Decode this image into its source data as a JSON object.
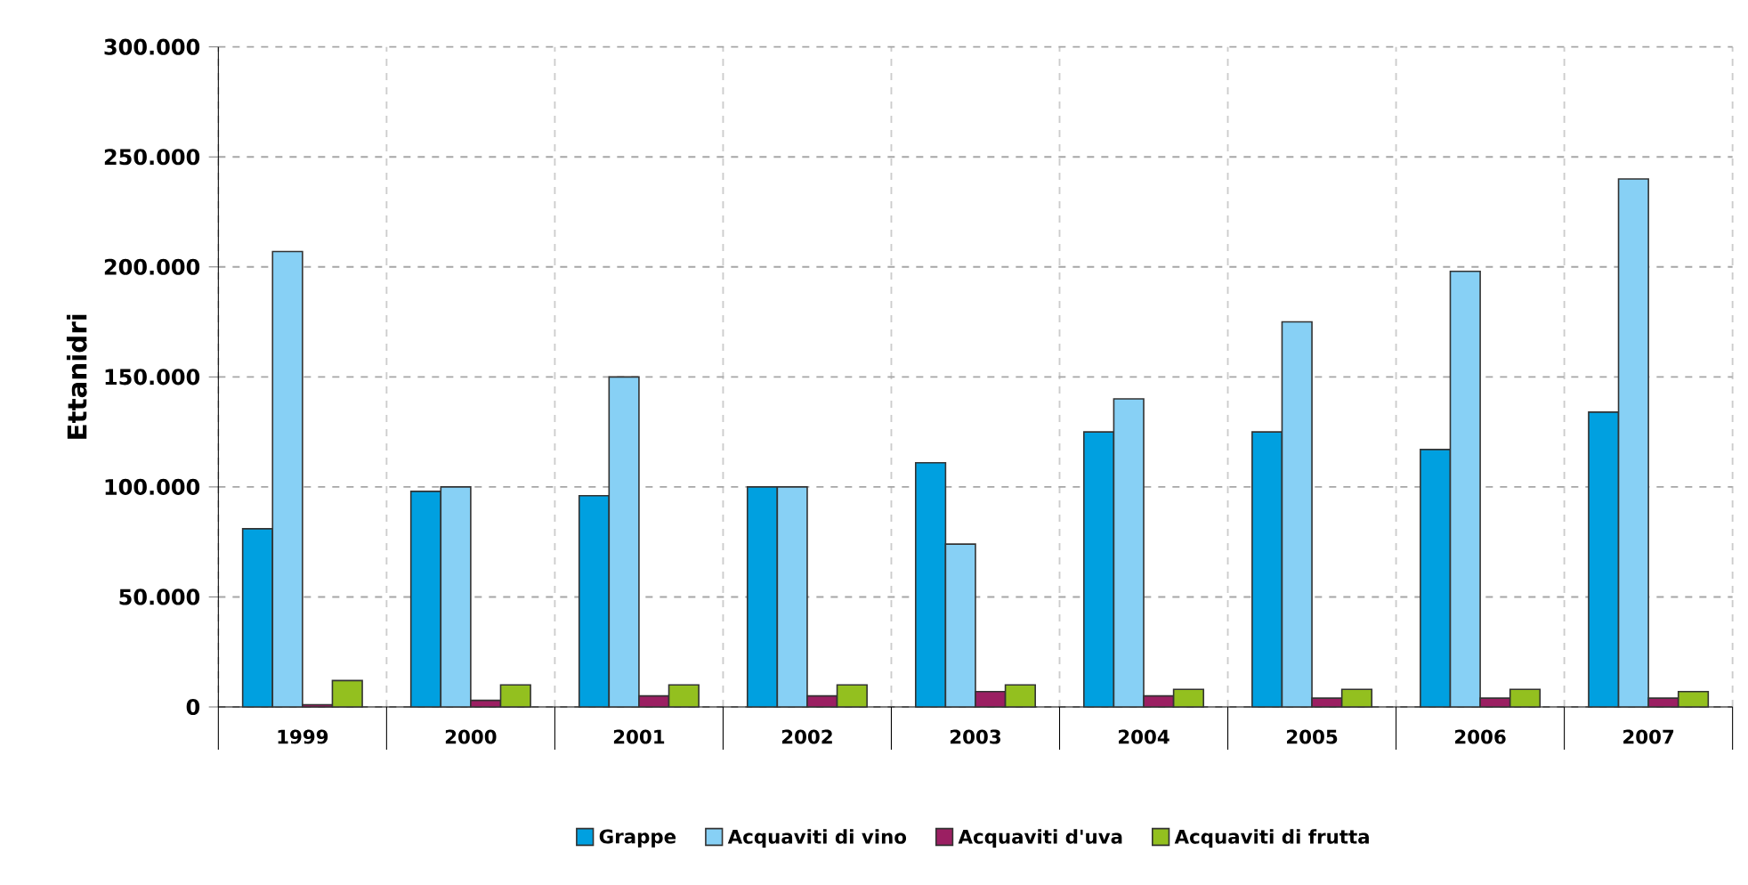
{
  "chart_data": {
    "type": "bar",
    "ylabel": "Ettanidri",
    "categories": [
      "1999",
      "2000",
      "2001",
      "2002",
      "2003",
      "2004",
      "2005",
      "2006",
      "2007"
    ],
    "series": [
      {
        "name": "Grappe",
        "color": "#00a0e0",
        "values": [
          81000,
          98000,
          96000,
          100000,
          111000,
          125000,
          125000,
          117000,
          134000
        ]
      },
      {
        "name": "Acquaviti di vino",
        "color": "#87d0f5",
        "values": [
          207000,
          100000,
          150000,
          100000,
          74000,
          140000,
          175000,
          198000,
          240000
        ]
      },
      {
        "name": "Acquaviti d'uva",
        "color": "#9b1f62",
        "values": [
          1000,
          3000,
          5000,
          5000,
          7000,
          5000,
          4000,
          4000,
          4000
        ]
      },
      {
        "name": "Acquaviti di frutta",
        "color": "#93c01f",
        "values": [
          12000,
          10000,
          10000,
          10000,
          10000,
          8000,
          8000,
          8000,
          7000
        ]
      }
    ],
    "ylim": [
      0,
      300000
    ],
    "yticks": [
      {
        "value": 0,
        "label": "0"
      },
      {
        "value": 50000,
        "label": "50.000"
      },
      {
        "value": 100000,
        "label": "100.000"
      },
      {
        "value": 150000,
        "label": "150.000"
      },
      {
        "value": 200000,
        "label": "200.000"
      },
      {
        "value": 250000,
        "label": "250.000"
      },
      {
        "value": 300000,
        "label": "300.000"
      }
    ],
    "grid": true,
    "legend": "bottom"
  }
}
